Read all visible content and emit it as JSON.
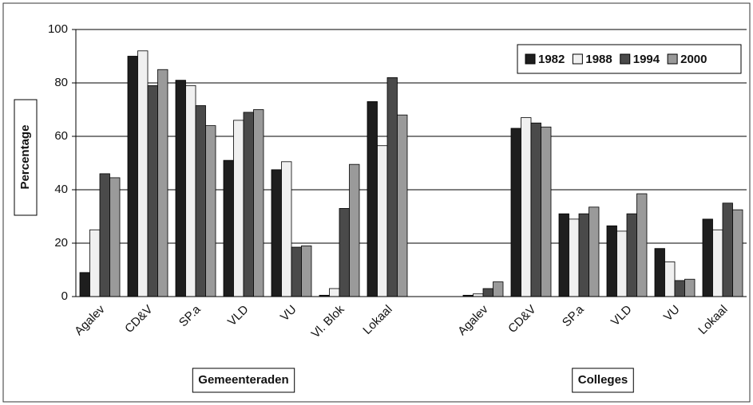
{
  "chart_data": {
    "type": "bar",
    "y_label": "Percentage",
    "categories": [
      "Agalev",
      "CD&V",
      "SP.a",
      "VLD",
      "VU",
      "Vl. Blok",
      "Lokaal",
      null,
      "Agalev",
      "CD&V",
      "SP.a",
      "VLD",
      "VU",
      "Lokaal"
    ],
    "x_group_labels": [
      "Gemeenteraden",
      "Colleges"
    ],
    "series": [
      {
        "name": "1982",
        "color": "#1e1e1e",
        "values": [
          9,
          90,
          81,
          51,
          47.5,
          0.5,
          73,
          null,
          0.5,
          63,
          31,
          26.5,
          18,
          29
        ]
      },
      {
        "name": "1988",
        "color": "#f0f0f0",
        "values": [
          25,
          92,
          79,
          66,
          50.5,
          3,
          56.5,
          null,
          1,
          67,
          29,
          24.5,
          13,
          25
        ]
      },
      {
        "name": "1994",
        "color": "#4a4a4a",
        "values": [
          46,
          79,
          71.5,
          69,
          18.5,
          33,
          82,
          null,
          3,
          65,
          31,
          31,
          6,
          35
        ]
      },
      {
        "name": "2000",
        "color": "#9a9a9a",
        "values": [
          44.5,
          85,
          64,
          70,
          19,
          49.5,
          68,
          null,
          5.5,
          63.5,
          33.5,
          38.5,
          6.5,
          32.5
        ]
      }
    ],
    "ylim": [
      0,
      100
    ],
    "yticks": [
      0,
      20,
      40,
      60,
      80,
      100
    ],
    "grid": true,
    "legend": "top-right"
  }
}
